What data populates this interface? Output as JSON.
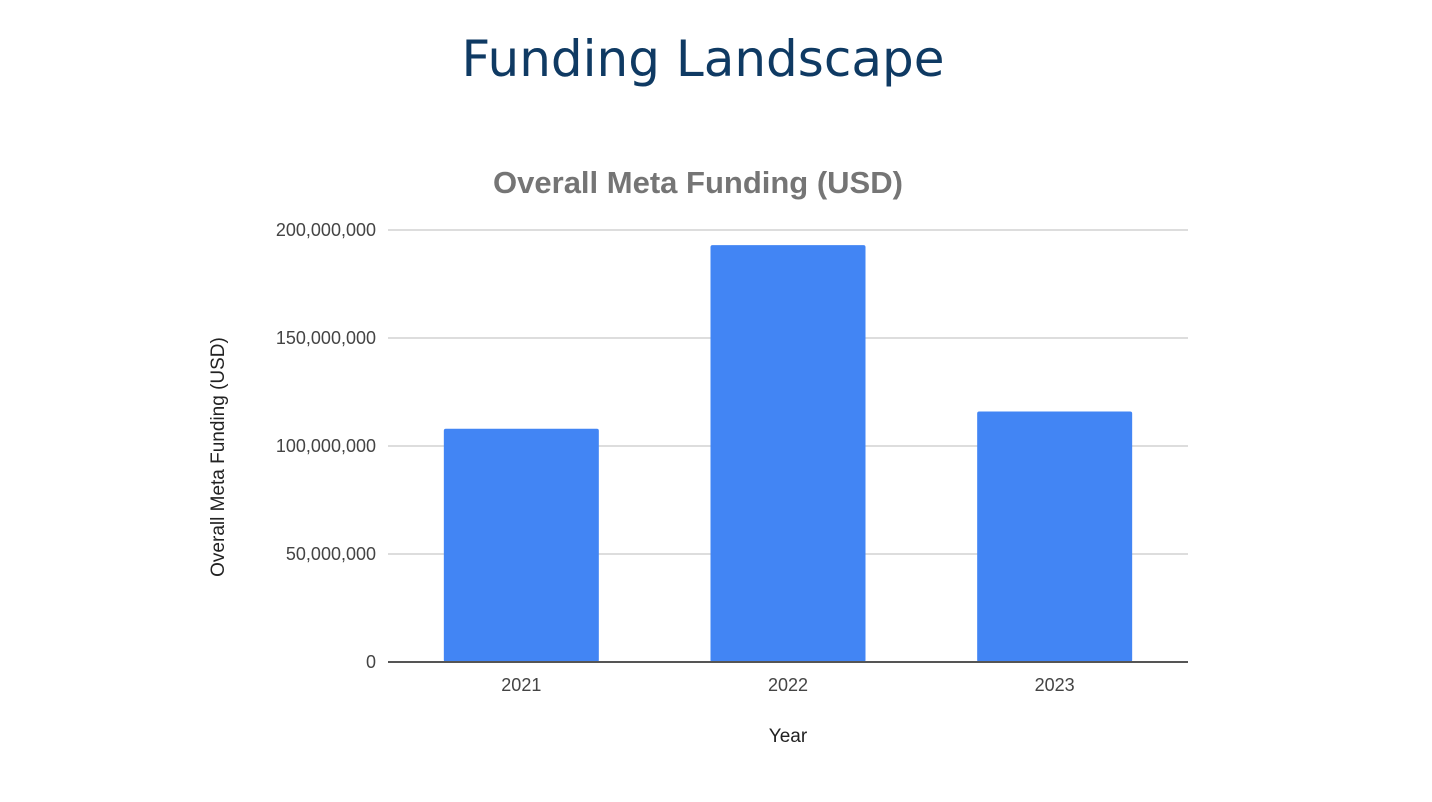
{
  "slide": {
    "title": "Funding Landscape"
  },
  "chart_data": {
    "type": "bar",
    "title": "Overall Meta Funding (USD)",
    "xlabel": "Year",
    "ylabel": "Overall Meta Funding (USD)",
    "categories": [
      "2021",
      "2022",
      "2023"
    ],
    "series": [
      {
        "values": [
          108000000,
          193000000,
          116000000
        ]
      }
    ],
    "ylim": [
      0,
      200000000
    ],
    "yticks": [
      0,
      50000000,
      100000000,
      150000000,
      200000000
    ],
    "ytick_labels": [
      "0",
      "50,000,000",
      "100,000,000",
      "150,000,000",
      "200,000,000"
    ],
    "grid": true,
    "legend": "none",
    "bar_color": "#4285f4",
    "grid_color": "#dddddd",
    "axis_color": "#555555"
  }
}
